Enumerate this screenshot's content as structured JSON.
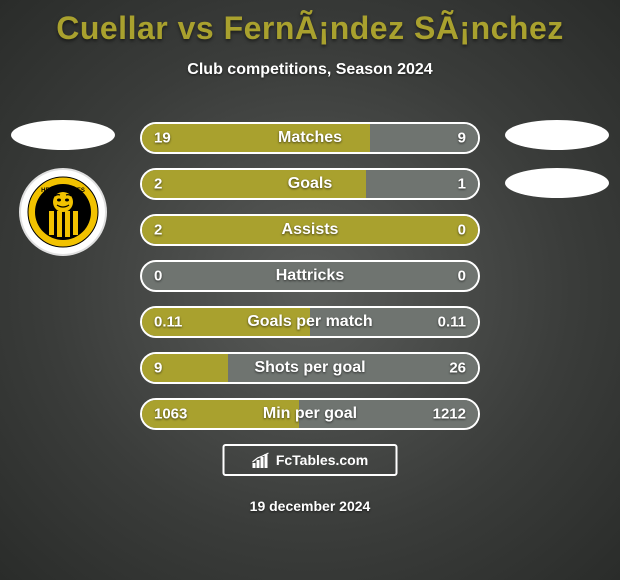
{
  "title": "Cuellar vs FernÃ¡ndez SÃ¡nchez",
  "subtitle": "Club competitions, Season 2024",
  "date": "19 december 2024",
  "footer_brand": "FcTables.com",
  "colors": {
    "accent_left": "#a9a12e",
    "accent_right": "#6f7470",
    "bar_bg": "#6f7470",
    "bar_border": "#ffffff",
    "title_color": "#a9a12e",
    "text_color": "#ffffff",
    "bg_center": "#5a5c5a",
    "bg_edge": "#2a2c2a"
  },
  "bars": [
    {
      "label": "Matches",
      "left_val": "19",
      "right_val": "9",
      "left_pct": 67.9,
      "right_pct": 32.1
    },
    {
      "label": "Goals",
      "left_val": "2",
      "right_val": "1",
      "left_pct": 66.7,
      "right_pct": 33.3
    },
    {
      "label": "Assists",
      "left_val": "2",
      "right_val": "0",
      "left_pct": 100,
      "right_pct": 0
    },
    {
      "label": "Hattricks",
      "left_val": "0",
      "right_val": "0",
      "left_pct": 0,
      "right_pct": 0
    },
    {
      "label": "Goals per match",
      "left_val": "0.11",
      "right_val": "0.11",
      "left_pct": 50,
      "right_pct": 50
    },
    {
      "label": "Shots per goal",
      "left_val": "9",
      "right_val": "26",
      "left_pct": 25.7,
      "right_pct": 74.3
    },
    {
      "label": "Min per goal",
      "left_val": "1063",
      "right_val": "1212",
      "left_pct": 46.7,
      "right_pct": 53.3
    }
  ],
  "club_badge": {
    "outer_ring": "#f2c200",
    "ring_text": "HE STRONGES",
    "stripes": [
      "#000000",
      "#f2c200"
    ],
    "tiger_bg": "#f2c200"
  }
}
